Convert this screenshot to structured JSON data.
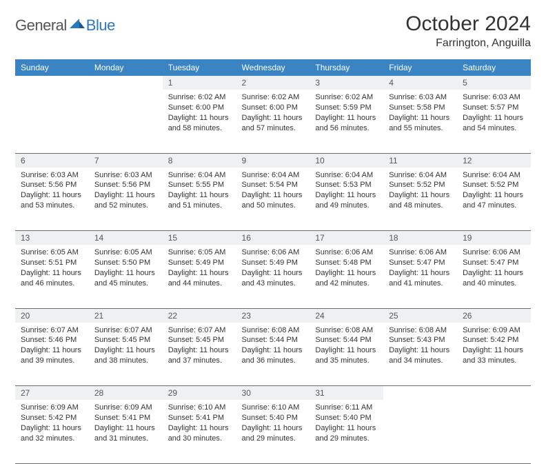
{
  "logo": {
    "general": "General",
    "blue": "Blue"
  },
  "title": "October 2024",
  "location": "Farrington, Anguilla",
  "colors": {
    "header_bg": "#3a84c4",
    "header_text": "#ffffff",
    "daynum_bg": "#eef0f2",
    "text": "#333333",
    "logo_blue": "#2b78bf",
    "border": "#6a6a6a"
  },
  "day_headers": [
    "Sunday",
    "Monday",
    "Tuesday",
    "Wednesday",
    "Thursday",
    "Friday",
    "Saturday"
  ],
  "weeks": [
    {
      "nums": [
        "",
        "",
        "1",
        "2",
        "3",
        "4",
        "5"
      ],
      "cells": [
        null,
        null,
        {
          "sunrise": "6:02 AM",
          "sunset": "6:00 PM",
          "daylight": "11 hours and 58 minutes."
        },
        {
          "sunrise": "6:02 AM",
          "sunset": "6:00 PM",
          "daylight": "11 hours and 57 minutes."
        },
        {
          "sunrise": "6:02 AM",
          "sunset": "5:59 PM",
          "daylight": "11 hours and 56 minutes."
        },
        {
          "sunrise": "6:03 AM",
          "sunset": "5:58 PM",
          "daylight": "11 hours and 55 minutes."
        },
        {
          "sunrise": "6:03 AM",
          "sunset": "5:57 PM",
          "daylight": "11 hours and 54 minutes."
        }
      ]
    },
    {
      "nums": [
        "6",
        "7",
        "8",
        "9",
        "10",
        "11",
        "12"
      ],
      "cells": [
        {
          "sunrise": "6:03 AM",
          "sunset": "5:56 PM",
          "daylight": "11 hours and 53 minutes."
        },
        {
          "sunrise": "6:03 AM",
          "sunset": "5:56 PM",
          "daylight": "11 hours and 52 minutes."
        },
        {
          "sunrise": "6:04 AM",
          "sunset": "5:55 PM",
          "daylight": "11 hours and 51 minutes."
        },
        {
          "sunrise": "6:04 AM",
          "sunset": "5:54 PM",
          "daylight": "11 hours and 50 minutes."
        },
        {
          "sunrise": "6:04 AM",
          "sunset": "5:53 PM",
          "daylight": "11 hours and 49 minutes."
        },
        {
          "sunrise": "6:04 AM",
          "sunset": "5:52 PM",
          "daylight": "11 hours and 48 minutes."
        },
        {
          "sunrise": "6:04 AM",
          "sunset": "5:52 PM",
          "daylight": "11 hours and 47 minutes."
        }
      ]
    },
    {
      "nums": [
        "13",
        "14",
        "15",
        "16",
        "17",
        "18",
        "19"
      ],
      "cells": [
        {
          "sunrise": "6:05 AM",
          "sunset": "5:51 PM",
          "daylight": "11 hours and 46 minutes."
        },
        {
          "sunrise": "6:05 AM",
          "sunset": "5:50 PM",
          "daylight": "11 hours and 45 minutes."
        },
        {
          "sunrise": "6:05 AM",
          "sunset": "5:49 PM",
          "daylight": "11 hours and 44 minutes."
        },
        {
          "sunrise": "6:06 AM",
          "sunset": "5:49 PM",
          "daylight": "11 hours and 43 minutes."
        },
        {
          "sunrise": "6:06 AM",
          "sunset": "5:48 PM",
          "daylight": "11 hours and 42 minutes."
        },
        {
          "sunrise": "6:06 AM",
          "sunset": "5:47 PM",
          "daylight": "11 hours and 41 minutes."
        },
        {
          "sunrise": "6:06 AM",
          "sunset": "5:47 PM",
          "daylight": "11 hours and 40 minutes."
        }
      ]
    },
    {
      "nums": [
        "20",
        "21",
        "22",
        "23",
        "24",
        "25",
        "26"
      ],
      "cells": [
        {
          "sunrise": "6:07 AM",
          "sunset": "5:46 PM",
          "daylight": "11 hours and 39 minutes."
        },
        {
          "sunrise": "6:07 AM",
          "sunset": "5:45 PM",
          "daylight": "11 hours and 38 minutes."
        },
        {
          "sunrise": "6:07 AM",
          "sunset": "5:45 PM",
          "daylight": "11 hours and 37 minutes."
        },
        {
          "sunrise": "6:08 AM",
          "sunset": "5:44 PM",
          "daylight": "11 hours and 36 minutes."
        },
        {
          "sunrise": "6:08 AM",
          "sunset": "5:44 PM",
          "daylight": "11 hours and 35 minutes."
        },
        {
          "sunrise": "6:08 AM",
          "sunset": "5:43 PM",
          "daylight": "11 hours and 34 minutes."
        },
        {
          "sunrise": "6:09 AM",
          "sunset": "5:42 PM",
          "daylight": "11 hours and 33 minutes."
        }
      ]
    },
    {
      "nums": [
        "27",
        "28",
        "29",
        "30",
        "31",
        "",
        ""
      ],
      "cells": [
        {
          "sunrise": "6:09 AM",
          "sunset": "5:42 PM",
          "daylight": "11 hours and 32 minutes."
        },
        {
          "sunrise": "6:09 AM",
          "sunset": "5:41 PM",
          "daylight": "11 hours and 31 minutes."
        },
        {
          "sunrise": "6:10 AM",
          "sunset": "5:41 PM",
          "daylight": "11 hours and 30 minutes."
        },
        {
          "sunrise": "6:10 AM",
          "sunset": "5:40 PM",
          "daylight": "11 hours and 29 minutes."
        },
        {
          "sunrise": "6:11 AM",
          "sunset": "5:40 PM",
          "daylight": "11 hours and 29 minutes."
        },
        null,
        null
      ]
    }
  ],
  "labels": {
    "sunrise": "Sunrise: ",
    "sunset": "Sunset: ",
    "daylight": "Daylight: "
  }
}
